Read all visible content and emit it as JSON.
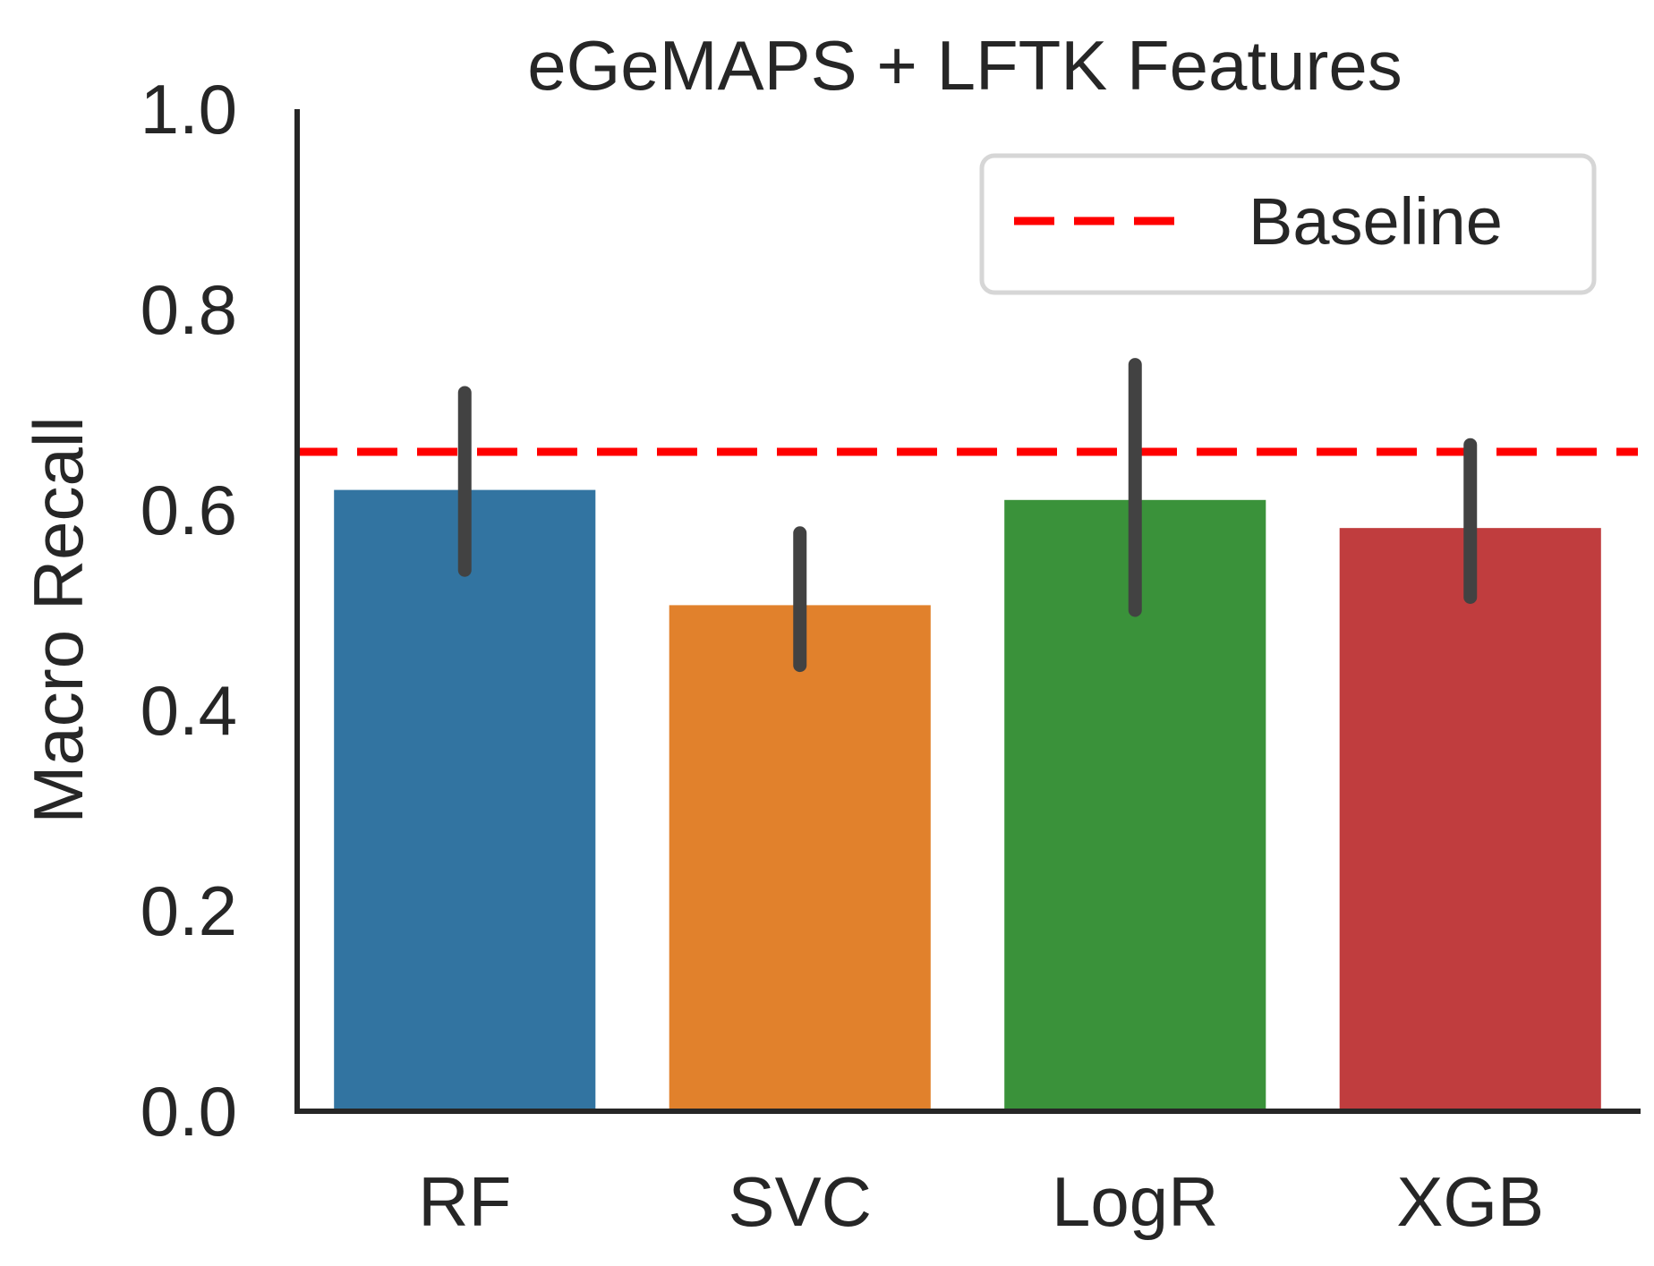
{
  "chart_data": {
    "type": "bar",
    "title": "eGeMAPS + LFTK Features",
    "xlabel": "",
    "ylabel": "Macro Recall",
    "categories": [
      "RF",
      "SVC",
      "LogR",
      "XGB"
    ],
    "values": [
      0.62,
      0.505,
      0.61,
      0.582
    ],
    "error_low": [
      0.54,
      0.445,
      0.5,
      0.513
    ],
    "error_high": [
      0.717,
      0.577,
      0.745,
      0.665
    ],
    "bar_colors": [
      "#3274a1",
      "#e1812c",
      "#3a923a",
      "#c03d3e"
    ],
    "errorbar_color": "#424242",
    "ylim": [
      0,
      1.0
    ],
    "yticks": [
      "0.0",
      "0.2",
      "0.4",
      "0.6",
      "0.8",
      "1.0"
    ],
    "baseline": {
      "value": 0.658,
      "label": "Baseline",
      "color": "#ff0000",
      "style": "dashed"
    },
    "legend": {
      "position": "top-right",
      "entries": [
        "Baseline"
      ]
    },
    "grid": false
  }
}
